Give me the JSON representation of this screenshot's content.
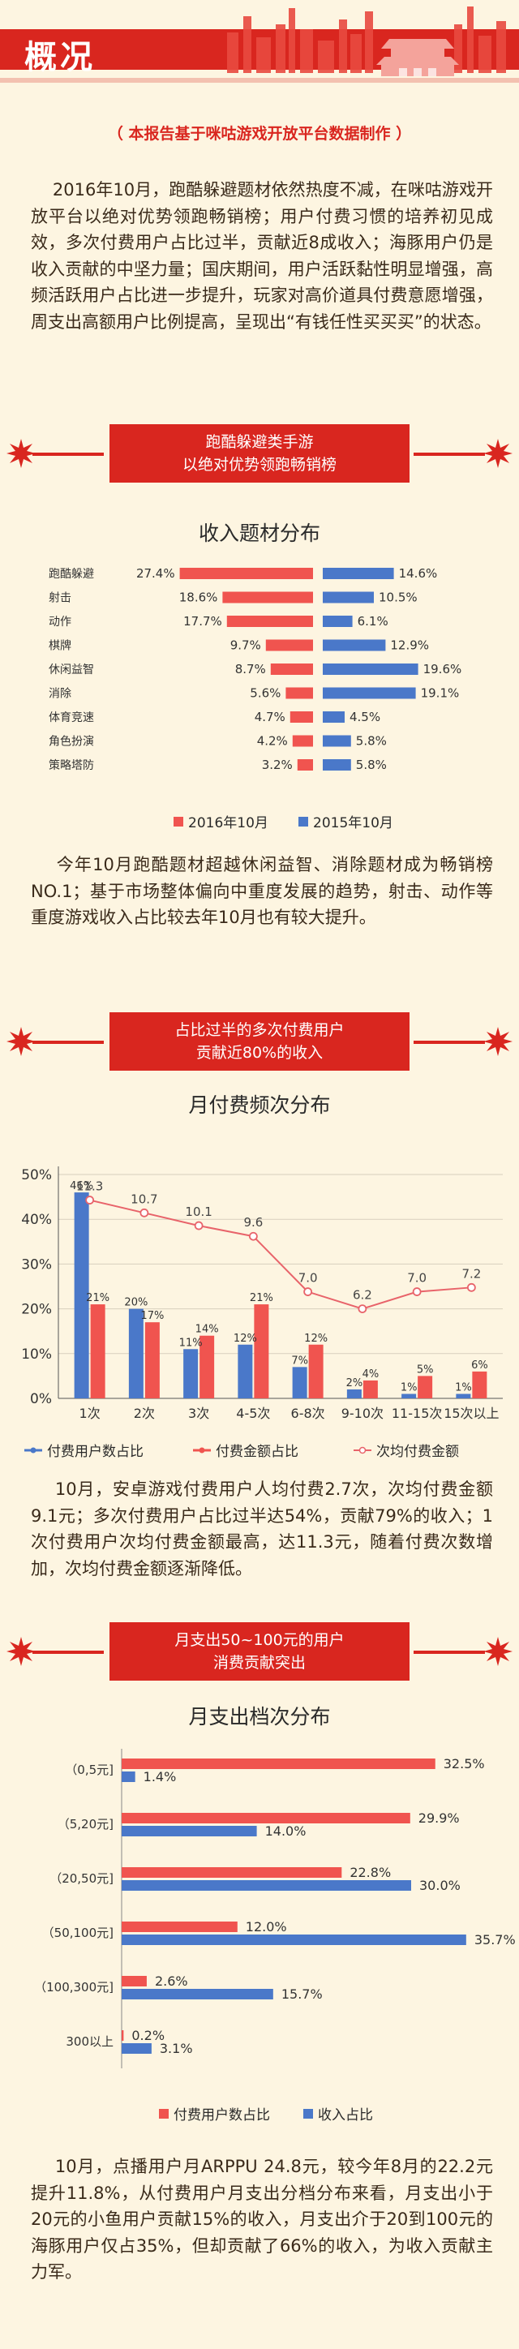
{
  "header": {
    "title": "概况"
  },
  "subtitle": "（ 本报告基于咪咕游戏开放平台数据制作 ）",
  "intro_text": "    2016年10月，跑酷躲避题材依然热度不减，在咪咕游戏开放平台以绝对优势领跑畅销榜；用户付费习惯的培养初见成效，多次付费用户占比过半，贡献近8成收入；海豚用户仍是收入贡献的中坚力量；国庆期间，用户活跃黏性明显增强，高频活跃用户占比进一步提升，玩家对高价道具付费意愿增强，周支出高额用户比例提高，呈现出“有钱任性买买买”的状态。",
  "sections": [
    {
      "banner_line1": "跑酷躲避类手游",
      "banner_line2": "以绝对优势领跑畅销榜",
      "chart_title": "收入题材分布"
    },
    {
      "banner_line1": "占比过半的多次付费用户",
      "banner_line2": "贡献近80%的收入",
      "chart_title": "月付费频次分布"
    },
    {
      "banner_line1": "月支出50~100元的用户",
      "banner_line2": "消费贡献突出",
      "chart_title": "月支出档次分布"
    }
  ],
  "texts": {
    "after_chart1": "    今年10月跑酷题材超越休闲益智、消除题材成为畅销榜NO.1；基于市场整体偏向中重度发展的趋势，射击、动作等重度游戏收入占比较去年10月也有较大提升。",
    "after_chart2": "    10月，安卓游戏付费用户人均付费2.7次，次均付费金额9.1元；多次付费用户占比过半达54%，贡献79%的收入；1次付费用户次均付费金额最高，达11.3元，随着付费次数增加，次均付费金额逐渐降低。",
    "after_chart3": "    10月，点播用户月ARPPU 24.8元，较今年8月的22.2元提升11.8%，从付费用户月支出分档分布来看，月支出小于20元的小鱼用户贡献15%的收入，月支出介于20到100元的海豚用户仅占35%，但却贡献了66%的收入，为收入贡献主力军。"
  },
  "colors": {
    "red": "#f0544f",
    "blue": "#4a78c9",
    "brand": "#d9261f",
    "line": "#e8636a"
  },
  "chart_data": [
    {
      "type": "bar",
      "orientation": "horizontal",
      "title": "收入题材分布",
      "categories": [
        "跑酷躲避",
        "射击",
        "动作",
        "棋牌",
        "休闲益智",
        "消除",
        "体育竞速",
        "角色扮演",
        "策略塔防"
      ],
      "series": [
        {
          "name": "2016年10月",
          "values": [
            27.4,
            18.6,
            17.7,
            9.7,
            8.7,
            5.6,
            4.7,
            4.2,
            3.2
          ],
          "labels": [
            "27.4%",
            "18.6%",
            "17.7%",
            "9.7%",
            "8.7%",
            "5.6%",
            "4.7%",
            "4.2%",
            "3.2%"
          ]
        },
        {
          "name": "2015年10月",
          "values": [
            14.6,
            10.5,
            6.1,
            12.9,
            19.6,
            19.1,
            4.5,
            5.8,
            5.8
          ],
          "labels": [
            "14.6%",
            "10.5%",
            "6.1%",
            "12.9%",
            "19.6%",
            "19.1%",
            "4.5%",
            "5.8%",
            "5.8%"
          ]
        }
      ],
      "legend": "bottom"
    },
    {
      "type": "bar",
      "title": "月付费频次分布",
      "categories": [
        "1次",
        "2次",
        "3次",
        "4-5次",
        "6-8次",
        "9-10次",
        "11-15次",
        "15次以上"
      ],
      "series": [
        {
          "name": "付费用户数占比",
          "values": [
            46,
            20,
            11,
            12,
            7,
            2,
            1,
            1
          ],
          "labels": [
            "46%",
            "20%",
            "11%",
            "12%",
            "7%",
            "2%",
            "1%",
            "1%"
          ]
        },
        {
          "name": "付费金额占比",
          "values": [
            21,
            17,
            14,
            21,
            12,
            4,
            5,
            6
          ],
          "labels": [
            "21%",
            "17%",
            "14%",
            "21%",
            "12%",
            "4%",
            "5%",
            "6%"
          ]
        },
        {
          "name": "次均付费金额",
          "type": "line",
          "values": [
            11.3,
            10.7,
            10.1,
            9.6,
            7.0,
            6.2,
            7.0,
            7.2
          ],
          "labels": [
            "11.3",
            "10.7",
            "10.1",
            "9.6",
            "7.0",
            "6.2",
            "7.0",
            "7.2"
          ]
        }
      ],
      "yticks": [
        "0%",
        "10%",
        "20%",
        "30%",
        "40%",
        "50%"
      ],
      "ylim": [
        0,
        50
      ],
      "legend": "bottom"
    },
    {
      "type": "bar",
      "orientation": "horizontal",
      "title": "月支出档次分布",
      "categories": [
        "（0,5元]",
        "（5,20元]",
        "（20,50元]",
        "（50,100元]",
        "（100,300元]",
        "300以上"
      ],
      "series": [
        {
          "name": "付费用户数占比",
          "values": [
            32.5,
            29.9,
            22.8,
            12.0,
            2.6,
            0.2
          ],
          "labels": [
            "32.5%",
            "29.9%",
            "22.8%",
            "12.0%",
            "2.6%",
            "0.2%"
          ]
        },
        {
          "name": "收入占比",
          "values": [
            1.4,
            14.0,
            30.0,
            35.7,
            15.7,
            3.1
          ],
          "labels": [
            "1.4%",
            "14.0%",
            "30.0%",
            "35.7%",
            "15.7%",
            "3.1%"
          ]
        }
      ],
      "legend": "bottom"
    }
  ]
}
